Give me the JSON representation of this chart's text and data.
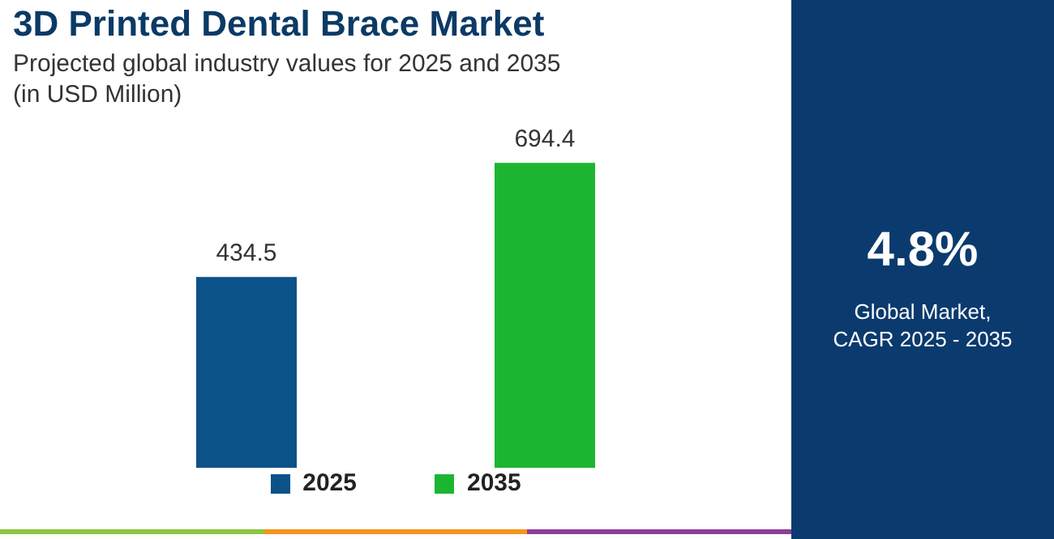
{
  "chart_data": {
    "type": "bar",
    "title": "3D Printed Dental Brace Market",
    "subtitle": "Projected global industry values for 2025 and 2035\n(in USD Million)",
    "categories": [
      null,
      null
    ],
    "stacked": true,
    "series": [
      {
        "name": "2025",
        "color": "#0b5289",
        "values": [
          434.5,
          null
        ]
      },
      {
        "name": "2035",
        "color": "#1cb531",
        "values": [
          null,
          694.4
        ]
      }
    ],
    "data_labels": true,
    "legend": "bottom",
    "tick_labels": false,
    "annotations": [
      "4.8%",
      "Global Market,\nCAGR 2025 - 2035"
    ]
  }
}
